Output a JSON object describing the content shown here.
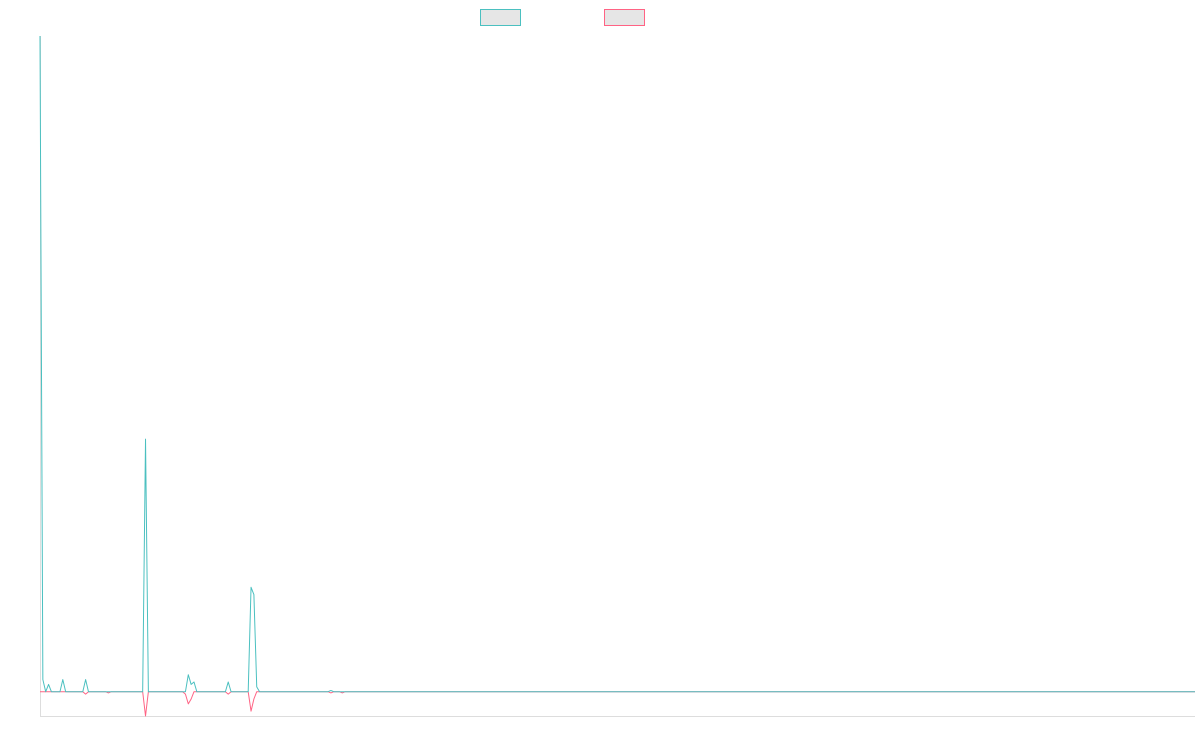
{
  "chart_data": {
    "type": "line",
    "title": "",
    "xlabel": "",
    "ylabel": "",
    "legend": {
      "placement": "top-center",
      "entries": [
        {
          "name": "",
          "color": "#4bc0c0",
          "fill": "#e6e6e6"
        },
        {
          "name": "",
          "color": "#ff6384",
          "fill": "#e6e6e6"
        }
      ]
    },
    "grid": false,
    "ylim": [
      -1,
      27
    ],
    "series": [
      {
        "name": "",
        "color": "#4bc0c0",
        "points": [
          [
            0,
            27
          ],
          [
            1,
            0.5
          ],
          [
            2,
            0
          ],
          [
            3,
            0.3
          ],
          [
            4,
            0
          ],
          [
            7,
            0
          ],
          [
            8,
            0.5
          ],
          [
            9,
            0
          ],
          [
            15,
            0
          ],
          [
            16,
            0.5
          ],
          [
            17,
            0
          ],
          [
            23,
            0
          ],
          [
            24,
            0
          ],
          [
            25,
            0
          ],
          [
            26,
            0
          ],
          [
            27,
            0
          ],
          [
            36,
            0
          ],
          [
            37,
            10.4
          ],
          [
            38,
            0
          ],
          [
            44,
            0
          ],
          [
            45,
            0
          ],
          [
            46,
            0
          ],
          [
            50,
            0
          ],
          [
            51,
            0
          ],
          [
            52,
            0.7
          ],
          [
            53,
            0.3
          ],
          [
            54,
            0.4
          ],
          [
            55,
            0
          ],
          [
            65,
            0
          ],
          [
            66,
            0.4
          ],
          [
            67,
            0
          ],
          [
            69,
            0
          ],
          [
            70,
            0
          ],
          [
            71,
            0
          ],
          [
            73,
            0
          ],
          [
            74,
            4.3
          ],
          [
            75,
            4.0
          ],
          [
            76,
            0.2
          ],
          [
            77,
            0
          ],
          [
            94,
            0
          ],
          [
            95,
            0
          ],
          [
            96,
            0
          ],
          [
            101,
            0
          ],
          [
            102,
            0.05
          ],
          [
            103,
            0
          ],
          [
            104,
            0
          ],
          [
            105,
            0
          ],
          [
            106,
            0
          ],
          [
            405,
            0
          ]
        ]
      },
      {
        "name": "",
        "color": "#ff6384",
        "points": [
          [
            0,
            0
          ],
          [
            15,
            0
          ],
          [
            16,
            -0.1
          ],
          [
            17,
            0
          ],
          [
            23,
            0
          ],
          [
            24,
            -0.05
          ],
          [
            25,
            0
          ],
          [
            36,
            0
          ],
          [
            37,
            -1
          ],
          [
            38,
            0
          ],
          [
            50,
            0
          ],
          [
            51,
            -0.1
          ],
          [
            52,
            -0.5
          ],
          [
            53,
            -0.3
          ],
          [
            54,
            0
          ],
          [
            65,
            0
          ],
          [
            66,
            -0.1
          ],
          [
            67,
            0
          ],
          [
            73,
            0
          ],
          [
            74,
            -0.8
          ],
          [
            75,
            -0.3
          ],
          [
            76,
            0
          ],
          [
            101,
            0
          ],
          [
            102,
            -0.05
          ],
          [
            103,
            0
          ],
          [
            105,
            0
          ],
          [
            106,
            -0.05
          ],
          [
            107,
            0
          ],
          [
            405,
            0
          ]
        ]
      }
    ]
  }
}
